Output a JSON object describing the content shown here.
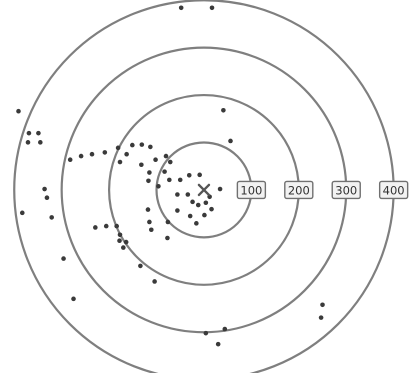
{
  "chart_data": {
    "type": "scatter",
    "title": "",
    "xlabel": "",
    "ylabel": "",
    "grid": false,
    "rings": [
      {
        "radius": 100,
        "label": "100"
      },
      {
        "radius": 200,
        "label": "200"
      },
      {
        "radius": 300,
        "label": "300"
      },
      {
        "radius": 400,
        "label": "400"
      }
    ],
    "center": {
      "x": 0,
      "y": 0
    },
    "xlim": [
      -430,
      445
    ],
    "ylim": [
      -400,
      415
    ],
    "points": [
      {
        "x": -48,
        "y": 398
      },
      {
        "x": 17,
        "y": 398
      },
      {
        "x": -391,
        "y": 172
      },
      {
        "x": -369,
        "y": 124
      },
      {
        "x": -349,
        "y": 124
      },
      {
        "x": -371,
        "y": 104
      },
      {
        "x": -345,
        "y": 104
      },
      {
        "x": -336,
        "y": 2
      },
      {
        "x": -331,
        "y": -17
      },
      {
        "x": -383,
        "y": -50
      },
      {
        "x": -321,
        "y": -60
      },
      {
        "x": -296,
        "y": -150
      },
      {
        "x": -275,
        "y": -238
      },
      {
        "x": -282,
        "y": 66
      },
      {
        "x": -259,
        "y": 74
      },
      {
        "x": -236,
        "y": 78
      },
      {
        "x": -209,
        "y": 82
      },
      {
        "x": -181,
        "y": 92
      },
      {
        "x": -177,
        "y": 61
      },
      {
        "x": -163,
        "y": 78
      },
      {
        "x": -151,
        "y": 98
      },
      {
        "x": -131,
        "y": 99
      },
      {
        "x": -113,
        "y": 94
      },
      {
        "x": -132,
        "y": 55
      },
      {
        "x": -102,
        "y": 66
      },
      {
        "x": -80,
        "y": 74
      },
      {
        "x": -115,
        "y": 38
      },
      {
        "x": -83,
        "y": 40
      },
      {
        "x": -71,
        "y": 61
      },
      {
        "x": -117,
        "y": 20
      },
      {
        "x": -96,
        "y": 8
      },
      {
        "x": -73,
        "y": 22
      },
      {
        "x": -50,
        "y": 22
      },
      {
        "x": -31,
        "y": 32
      },
      {
        "x": -9,
        "y": 33
      },
      {
        "x": -56,
        "y": -10
      },
      {
        "x": -34,
        "y": -10
      },
      {
        "x": -24,
        "y": -26
      },
      {
        "x": -12,
        "y": -33
      },
      {
        "x": 4,
        "y": -28
      },
      {
        "x": -76,
        "y": -70
      },
      {
        "x": -56,
        "y": -45
      },
      {
        "x": -29,
        "y": -57
      },
      {
        "x": -16,
        "y": -73
      },
      {
        "x": 1,
        "y": -55
      },
      {
        "x": 16,
        "y": -42
      },
      {
        "x": 12,
        "y": -15
      },
      {
        "x": 34,
        "y": 2
      },
      {
        "x": -118,
        "y": -43
      },
      {
        "x": -115,
        "y": -70
      },
      {
        "x": -111,
        "y": -87
      },
      {
        "x": -77,
        "y": -105
      },
      {
        "x": -229,
        "y": -82
      },
      {
        "x": -206,
        "y": -79
      },
      {
        "x": -184,
        "y": -79
      },
      {
        "x": -177,
        "y": -98
      },
      {
        "x": -178,
        "y": -111
      },
      {
        "x": -164,
        "y": -114
      },
      {
        "x": -170,
        "y": -126
      },
      {
        "x": -134,
        "y": -166
      },
      {
        "x": -104,
        "y": -200
      },
      {
        "x": 41,
        "y": 174
      },
      {
        "x": 56,
        "y": 107
      },
      {
        "x": 4,
        "y": -313
      },
      {
        "x": 44,
        "y": -304
      },
      {
        "x": 30,
        "y": -337
      },
      {
        "x": 250,
        "y": -251
      },
      {
        "x": 247,
        "y": -279
      }
    ]
  }
}
